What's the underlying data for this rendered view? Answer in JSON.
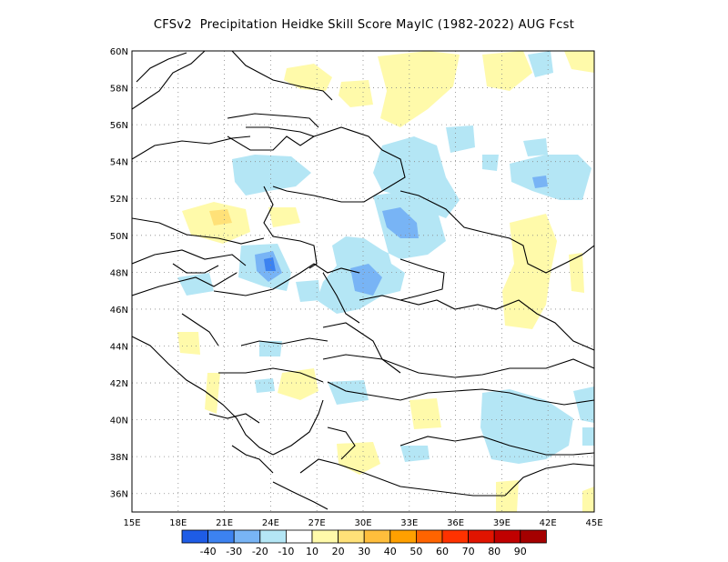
{
  "title": "CFSv2  Precipitation Heidke Skill Score MayIC (1982-2022) AUG Fcst",
  "map": {
    "lon_range": [
      15,
      45
    ],
    "lat_range": [
      35,
      60
    ],
    "lat_labels": [
      "60N",
      "58N",
      "56N",
      "54N",
      "52N",
      "50N",
      "48N",
      "46N",
      "44N",
      "42N",
      "40N",
      "38N",
      "36N"
    ],
    "lon_labels": [
      "15E",
      "18E",
      "21E",
      "24E",
      "27E",
      "30E",
      "33E",
      "36E",
      "39E",
      "42E",
      "45E"
    ],
    "grid": "dotted"
  },
  "legend": {
    "colors": [
      "#1e5ce6",
      "#3c82f0",
      "#78b4f5",
      "#b4e6f5",
      "#ffffff",
      "#fffaaa",
      "#ffe178",
      "#ffbe3c",
      "#ffa000",
      "#ff6400",
      "#ff3200",
      "#e11400",
      "#c00000",
      "#a50000"
    ],
    "labels": [
      "-40",
      "-30",
      "-20",
      "-10",
      "10",
      "20",
      "30",
      "40",
      "50",
      "60",
      "70",
      "80",
      "90"
    ]
  },
  "skill_regions": [
    {
      "category": "20",
      "color": "#fffaaa"
    },
    {
      "category": "-10",
      "color": "#b4e6f5"
    },
    {
      "category": "-20",
      "color": "#78b4f5"
    },
    {
      "category": "-30",
      "color": "#3c82f0"
    }
  ]
}
